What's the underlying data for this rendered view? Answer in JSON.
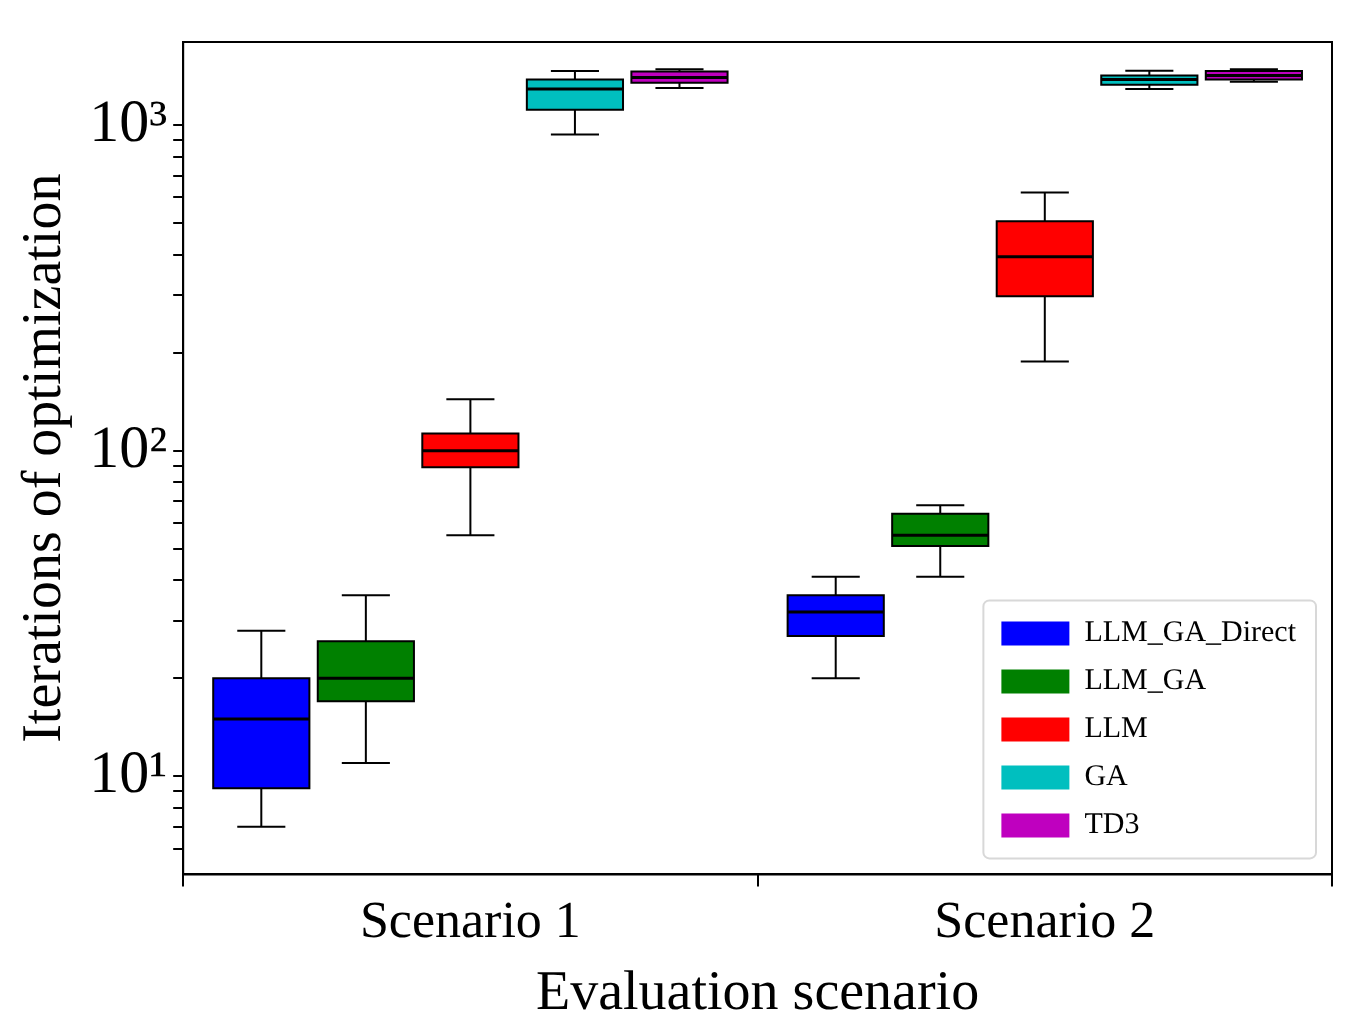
{
  "chart_data": {
    "type": "box",
    "xlabel": "Evaluation scenario",
    "ylabel": "Iterations of optimization",
    "categories": [
      "Scenario 1",
      "Scenario 2"
    ],
    "series": [
      {
        "name": "LLM_GA_Direct",
        "color": "#0000ff",
        "boxes": [
          {
            "low": 7,
            "q1": 9.2,
            "median": 15,
            "q3": 20,
            "high": 28
          },
          {
            "low": 20,
            "q1": 27,
            "median": 32,
            "q3": 36,
            "high": 41
          }
        ]
      },
      {
        "name": "LLM_GA",
        "color": "#008000",
        "boxes": [
          {
            "low": 11,
            "q1": 17,
            "median": 20,
            "q3": 26,
            "high": 36
          },
          {
            "low": 41,
            "q1": 51,
            "median": 55,
            "q3": 64,
            "high": 68
          }
        ]
      },
      {
        "name": "LLM",
        "color": "#ff0000",
        "boxes": [
          {
            "low": 55,
            "q1": 89,
            "median": 100,
            "q3": 113,
            "high": 144
          },
          {
            "low": 188,
            "q1": 298,
            "median": 394,
            "q3": 507,
            "high": 621
          }
        ]
      },
      {
        "name": "GA",
        "color": "#00bfbf",
        "boxes": [
          {
            "low": 936,
            "q1": 1115,
            "median": 1290,
            "q3": 1380,
            "high": 1465
          },
          {
            "low": 1290,
            "q1": 1330,
            "median": 1380,
            "q3": 1420,
            "high": 1470
          }
        ]
      },
      {
        "name": "TD3",
        "color": "#bf00bf",
        "boxes": [
          {
            "low": 1300,
            "q1": 1350,
            "median": 1400,
            "q3": 1460,
            "high": 1484
          },
          {
            "low": 1360,
            "q1": 1380,
            "median": 1420,
            "q3": 1465,
            "high": 1484
          }
        ]
      }
    ],
    "log": true,
    "ylim": [
      5,
      1800
    ],
    "yticks": [
      {
        "value": 6,
        "label": null
      },
      {
        "value": 7,
        "label": null
      },
      {
        "value": 8,
        "label": null
      },
      {
        "value": 9,
        "label": null
      },
      {
        "value": 10,
        "label": "10¹"
      },
      {
        "value": 20,
        "label": null
      },
      {
        "value": 30,
        "label": null
      },
      {
        "value": 40,
        "label": null
      },
      {
        "value": 50,
        "label": null
      },
      {
        "value": 60,
        "label": null
      },
      {
        "value": 70,
        "label": null
      },
      {
        "value": 80,
        "label": null
      },
      {
        "value": 90,
        "label": null
      },
      {
        "value": 100,
        "label": "10²"
      },
      {
        "value": 200,
        "label": null
      },
      {
        "value": 300,
        "label": null
      },
      {
        "value": 400,
        "label": null
      },
      {
        "value": 500,
        "label": null
      },
      {
        "value": 600,
        "label": null
      },
      {
        "value": 700,
        "label": null
      },
      {
        "value": 800,
        "label": null
      },
      {
        "value": 900,
        "label": null
      },
      {
        "value": 1000,
        "label": "10³"
      }
    ],
    "grid": false,
    "legend": "bottom right"
  }
}
